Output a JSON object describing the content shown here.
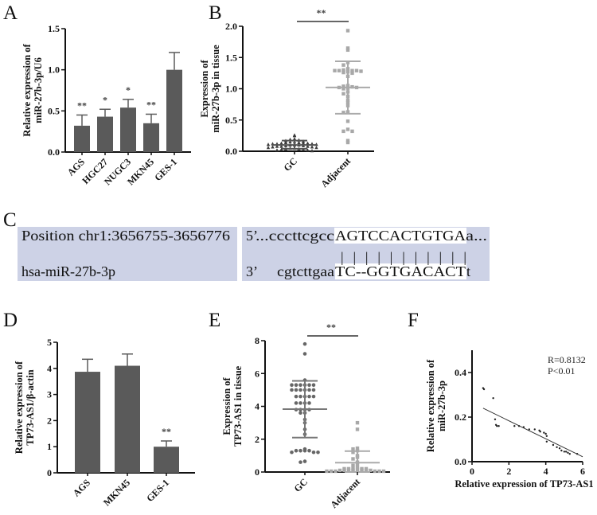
{
  "colors": {
    "bar": "#5a5a5a",
    "dark_point": "#3a3a3a",
    "gc_point": "#666666",
    "adjacent_point": "#a8a8a8",
    "sequence_box": "#cdd2e6",
    "highlight": "#ffffff",
    "axis": "#111111"
  },
  "chart_data": [
    {
      "panel": "A",
      "type": "bar",
      "categories": [
        "AGS",
        "HGC27",
        "NUGC3",
        "MKN45",
        "GES-1"
      ],
      "values": [
        0.32,
        0.43,
        0.54,
        0.35,
        1.0
      ],
      "errors": [
        0.13,
        0.09,
        0.1,
        0.11,
        0.21
      ],
      "significance": [
        "**",
        "*",
        "*",
        "**",
        ""
      ],
      "ylabel": [
        "Relative expression of",
        "miR-27b-3p/U6"
      ],
      "ylim": [
        0,
        1.5
      ],
      "yticks": [
        "0.0",
        "0.5",
        "1.0",
        "1.5"
      ]
    },
    {
      "panel": "B",
      "type": "scatter",
      "categories": [
        "GC",
        "Adjacent"
      ],
      "series": [
        {
          "values": [
            0.2,
            0.19,
            0.18,
            0.17,
            0.16,
            0.15,
            0.15,
            0.14,
            0.14,
            0.13,
            0.13,
            0.13,
            0.12,
            0.12,
            0.12,
            0.11,
            0.11,
            0.1,
            0.1,
            0.1,
            0.09,
            0.09,
            0.08,
            0.08,
            0.08,
            0.07,
            0.07,
            0.06,
            0.06,
            0.05,
            0.05,
            0.04,
            0.04,
            0.03,
            0.03,
            0.02,
            0.02,
            0.01,
            0.25,
            0.26
          ],
          "mean": 0.1,
          "sd_low": 0.04,
          "sd_high": 0.17
        },
        {
          "values": [
            1.93,
            1.65,
            1.62,
            1.42,
            1.38,
            1.32,
            1.3,
            1.29,
            1.29,
            1.29,
            1.29,
            1.28,
            1.27,
            1.26,
            1.25,
            1.2,
            1.05,
            1.04,
            1.03,
            1.02,
            1.02,
            1.01,
            1.0,
            0.95,
            0.92,
            0.88,
            0.82,
            0.78,
            0.73,
            0.63,
            0.62,
            0.48,
            0.35,
            0.32,
            0.32,
            0.17,
            0.14
          ],
          "mean": 1.02,
          "sd_low": 0.6,
          "sd_high": 1.44
        }
      ],
      "significance": "**",
      "ylabel": [
        "Expression of",
        "miR-27b-3p in tissue"
      ],
      "ylim": [
        0,
        2.0
      ],
      "yticks": [
        "0.0",
        "0.5",
        "1.0",
        "1.5",
        "2.0"
      ]
    },
    {
      "panel": "D",
      "type": "bar",
      "categories": [
        "AGS",
        "MKN45",
        "GES-1"
      ],
      "values": [
        3.87,
        4.1,
        1.0
      ],
      "errors": [
        0.48,
        0.45,
        0.22
      ],
      "significance": [
        "",
        "",
        "**"
      ],
      "ylabel": [
        "Relative expression of",
        "TP73-AS1/β-actin"
      ],
      "ylim": [
        0,
        5
      ],
      "yticks": [
        "0",
        "1",
        "2",
        "3",
        "4",
        "5"
      ]
    },
    {
      "panel": "E",
      "type": "scatter",
      "categories": [
        "GC",
        "Adjacent"
      ],
      "series": [
        {
          "values": [
            7.8,
            7.2,
            5.6,
            5.3,
            5.3,
            5.3,
            5.3,
            5.3,
            5.3,
            5.0,
            5.0,
            5.0,
            5.0,
            5.0,
            5.0,
            4.6,
            4.6,
            4.6,
            4.6,
            4.6,
            4.2,
            4.2,
            4.2,
            4.2,
            3.8,
            3.8,
            3.8,
            3.8,
            3.6,
            3.6,
            3.2,
            3.0,
            2.6,
            2.3,
            1.4,
            1.3,
            1.3,
            1.3,
            1.3,
            1.2,
            1.2,
            1.2,
            0.65,
            0.6
          ],
          "mean": 3.83,
          "sd_low": 2.1,
          "sd_high": 5.55
        },
        {
          "values": [
            3.0,
            2.6,
            1.45,
            1.4,
            1.3,
            1.2,
            1.0,
            0.9,
            0.8,
            0.6,
            0.5,
            0.4,
            0.3,
            0.2,
            0.2,
            0.2,
            0.2,
            0.2,
            0.1,
            0.1,
            0.1,
            0.1,
            0.1,
            0.1,
            0.1,
            0.1,
            0.05,
            0.05,
            0.05,
            0.05,
            0.05,
            0.05
          ],
          "mean": 0.57,
          "sd_low": 0.0,
          "sd_high": 1.27
        }
      ],
      "significance": "**",
      "ylabel": [
        "Expression of",
        "TP73-AS1 in tissue"
      ],
      "ylim": [
        0,
        8
      ],
      "yticks": [
        "0",
        "2",
        "4",
        "6",
        "8"
      ]
    },
    {
      "panel": "F",
      "type": "scatter",
      "points": [
        [
          0.6,
          0.33
        ],
        [
          0.65,
          0.325
        ],
        [
          1.15,
          0.285
        ],
        [
          1.25,
          0.19
        ],
        [
          1.3,
          0.165
        ],
        [
          1.35,
          0.16
        ],
        [
          1.45,
          0.16
        ],
        [
          2.3,
          0.16
        ],
        [
          2.55,
          0.16
        ],
        [
          2.8,
          0.155
        ],
        [
          3.1,
          0.145
        ],
        [
          3.4,
          0.145
        ],
        [
          3.65,
          0.14
        ],
        [
          3.7,
          0.135
        ],
        [
          3.9,
          0.13
        ],
        [
          4.0,
          0.125
        ],
        [
          4.05,
          0.115
        ],
        [
          4.05,
          0.09
        ],
        [
          4.4,
          0.075
        ],
        [
          4.6,
          0.065
        ],
        [
          4.75,
          0.06
        ],
        [
          4.85,
          0.05
        ],
        [
          5.0,
          0.045
        ],
        [
          5.1,
          0.045
        ],
        [
          5.2,
          0.04
        ],
        [
          5.3,
          0.035
        ],
        [
          5.7,
          0.035
        ]
      ],
      "fit_line": [
        [
          0.6,
          0.24
        ],
        [
          6.0,
          0.022
        ]
      ],
      "annotation": [
        "R=0.8132",
        "P<0.01"
      ],
      "xlabel": "Relative expression of  TP73-AS1",
      "ylabel": [
        "Relative expression of",
        "miR-27b-3p"
      ],
      "xlim": [
        0,
        6
      ],
      "ylim": [
        0,
        0.5
      ],
      "xticks": [
        "0",
        "2",
        "4",
        "6"
      ],
      "yticks": [
        "0.0",
        "0.2",
        "0.4"
      ]
    }
  ],
  "panel_labels": {
    "A": "A",
    "B": "B",
    "C": "C",
    "D": "D",
    "E": "E",
    "F": "F"
  },
  "sequence_panel": {
    "position": "Position chr1:3656755-3656776",
    "mirna": "hsa-miR-27b-3p",
    "target_prefix": "5’",
    "target_left": "...cccttcgcc",
    "target_seed": "AGTCCACTGTGA",
    "target_right": "a...",
    "mirna_prefix": "3’",
    "mirna_left": "cgtcttgaa",
    "mirna_seed": "TC--GGTGACACT",
    "mirna_right": "t",
    "pairing": "| |   | | | | | | | | |"
  }
}
